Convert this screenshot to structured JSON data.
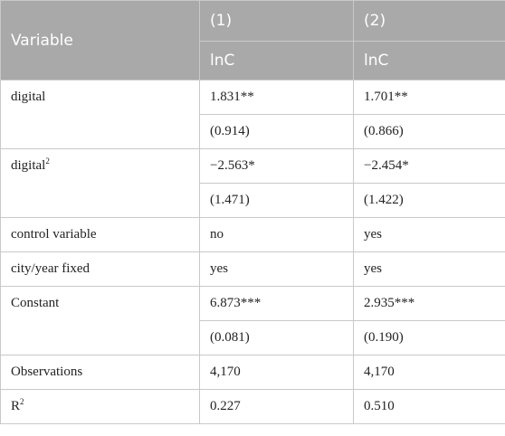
{
  "header": {
    "variable": "Variable",
    "col1": "(1)",
    "col2": "(2)",
    "dep1": "lnC",
    "dep2": "lnC"
  },
  "rows": {
    "digital": {
      "label": "digital",
      "coef1": "1.831**",
      "coef2": "1.701**",
      "se1": "(0.914)",
      "se2": "(0.866)"
    },
    "digital_sq": {
      "label": "digital",
      "sup": "2",
      "coef1": "−2.563*",
      "coef2": "−2.454*",
      "se1": "(1.471)",
      "se2": "(1.422)"
    },
    "control": {
      "label": "control variable",
      "v1": "no",
      "v2": "yes"
    },
    "fixed": {
      "label": "city/year fixed",
      "v1": "yes",
      "v2": "yes"
    },
    "constant": {
      "label": "Constant",
      "coef1": "6.873***",
      "coef2": "2.935***",
      "se1": "(0.081)",
      "se2": "(0.190)"
    },
    "observations": {
      "label": "Observations",
      "v1": "4,170",
      "v2": "4,170"
    },
    "r2": {
      "label": "R",
      "sup": "2",
      "v1": "0.227",
      "v2": "0.510"
    }
  }
}
